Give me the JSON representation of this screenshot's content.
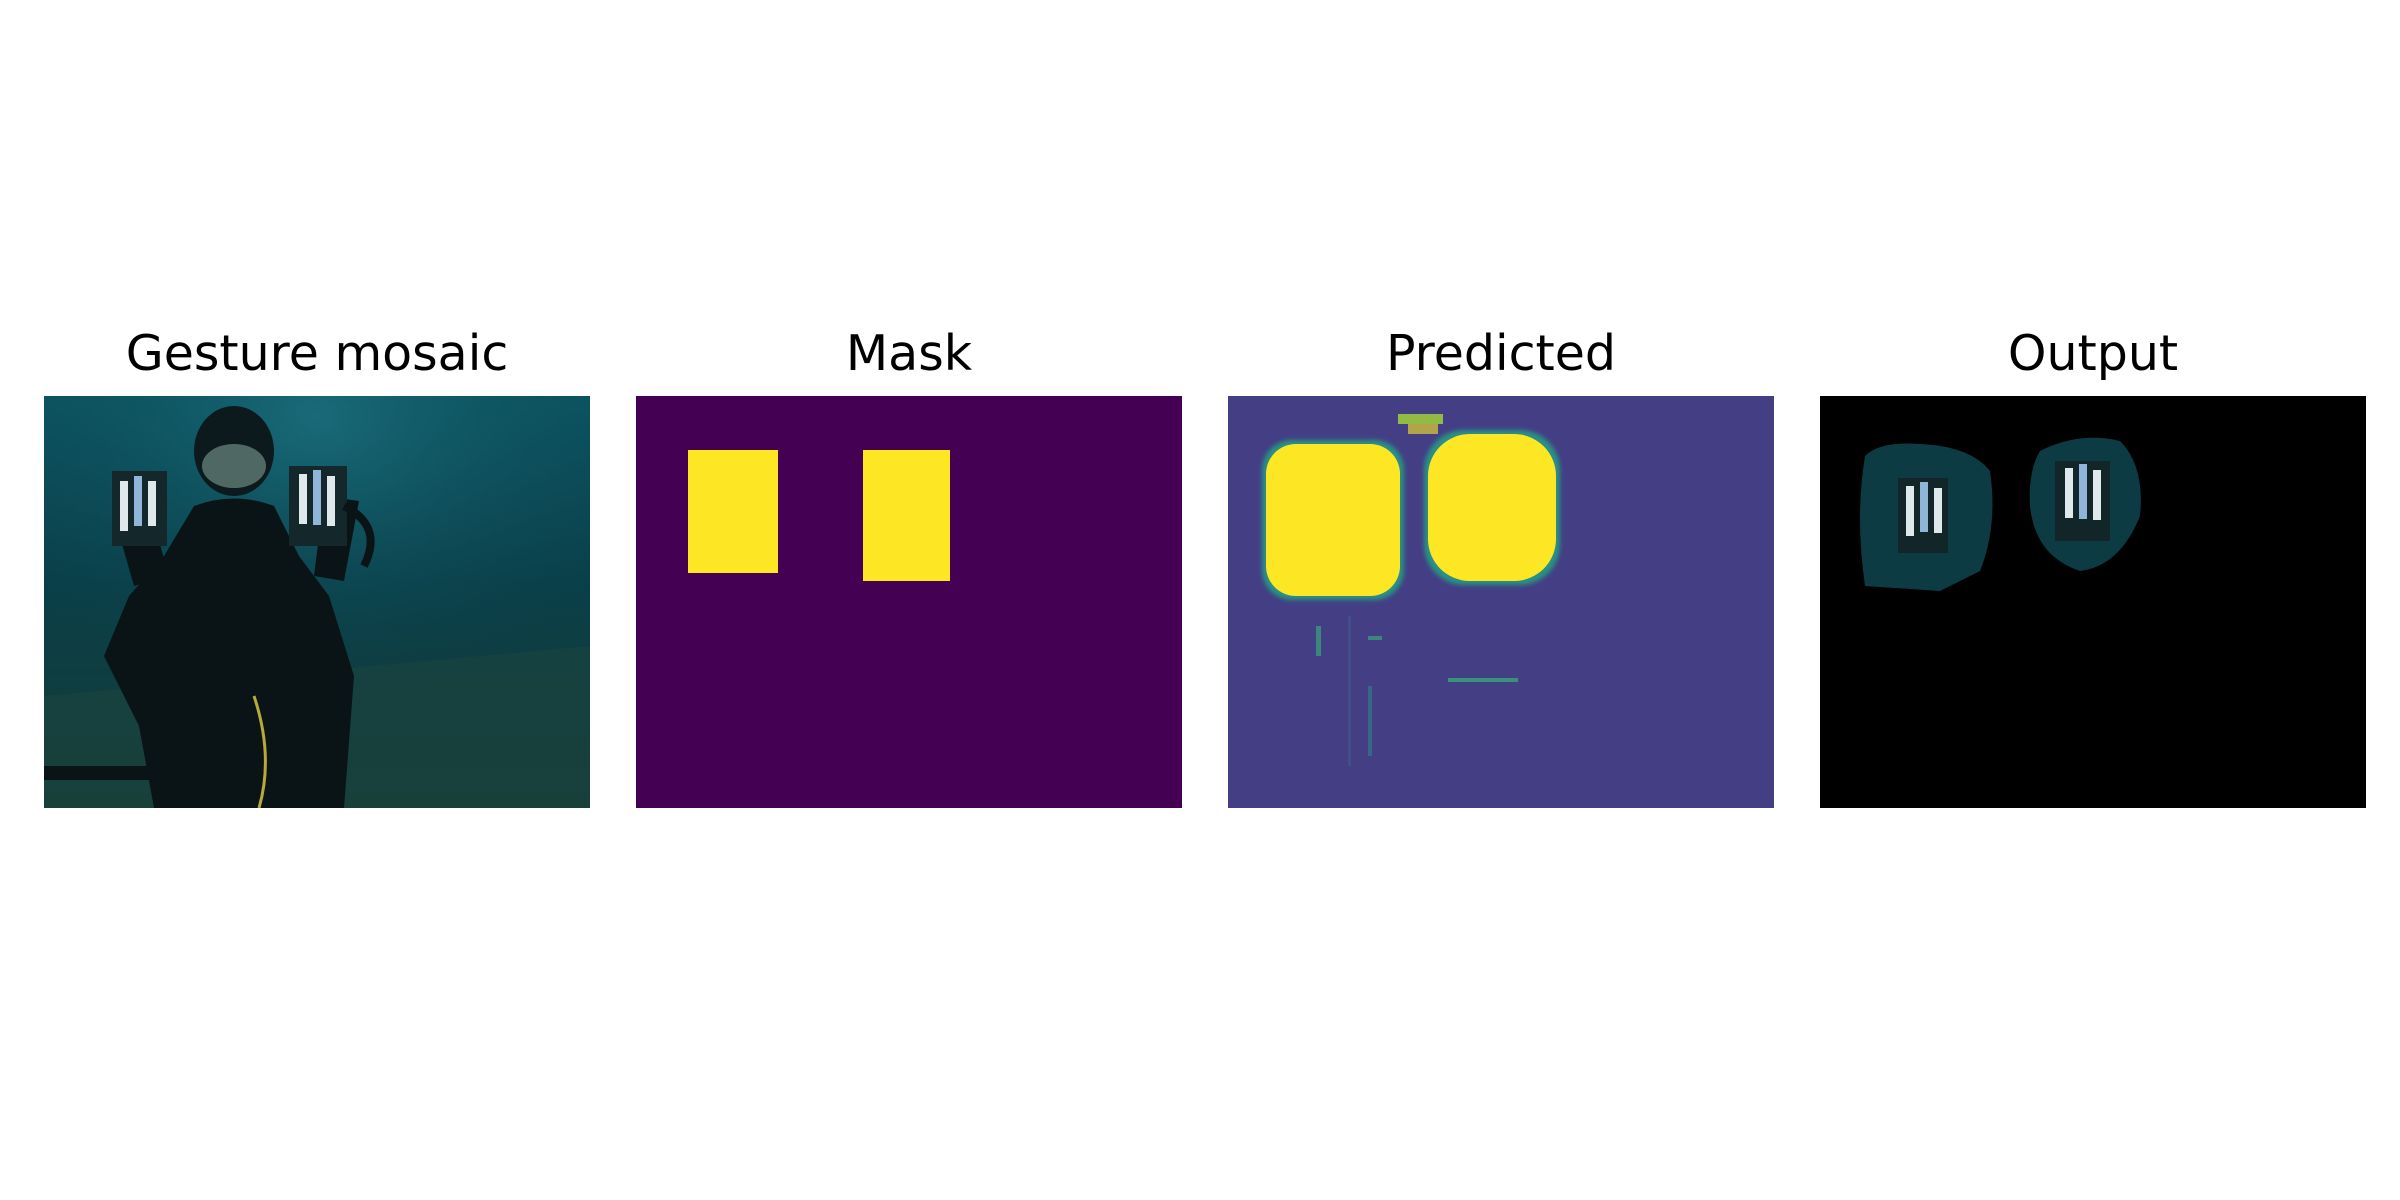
{
  "panels": [
    {
      "title": "Gesture mosaic"
    },
    {
      "title": "Mask"
    },
    {
      "title": "Predicted"
    },
    {
      "title": "Output"
    }
  ],
  "colors": {
    "mask_background": "#440154",
    "mask_foreground": "#fde725",
    "predicted_background": "#443f84",
    "output_background": "#000000",
    "water": "#0c3f48"
  }
}
